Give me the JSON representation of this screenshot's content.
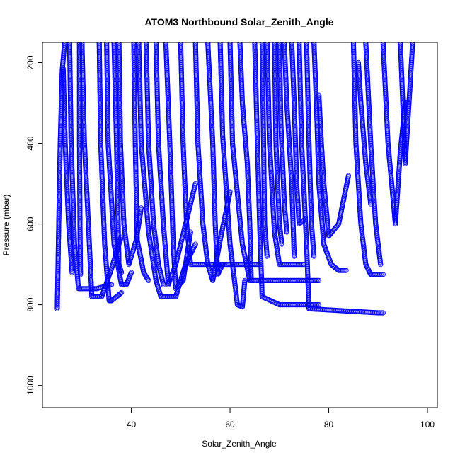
{
  "chart_data": {
    "type": "scatter",
    "title": "ATOM3 Northbound Solar_Zenith_Angle",
    "xlabel": "Solar_Zenith_Angle",
    "ylabel": "Pressure (mbar)",
    "xlim": [
      22,
      102
    ],
    "ylim": [
      1055,
      150
    ],
    "y_reversed": true,
    "x_ticks": [
      40,
      60,
      80,
      100
    ],
    "y_ticks": [
      200,
      400,
      600,
      800,
      1000
    ],
    "grid": false,
    "legend": "none",
    "series_color": "#0000ff",
    "series": [
      {
        "values": [
          [
            25.0,
            810
          ],
          [
            25.3,
            600
          ],
          [
            25.6,
            400
          ],
          [
            26.0,
            220
          ],
          [
            26.5,
            150
          ]
        ]
      },
      {
        "values": [
          [
            26.2,
            215
          ],
          [
            26.6,
            400
          ],
          [
            27.3,
            600
          ],
          [
            28.0,
            720
          ]
        ]
      },
      {
        "values": [
          [
            27.5,
            150
          ],
          [
            27.8,
            400
          ],
          [
            28.5,
            650
          ],
          [
            29.3,
            760
          ],
          [
            33.0,
            760
          ],
          [
            36.0,
            750
          ]
        ]
      },
      {
        "values": [
          [
            29.5,
            150
          ],
          [
            29.5,
            400
          ],
          [
            29.6,
            600
          ],
          [
            29.7,
            725
          ]
        ]
      },
      {
        "values": [
          [
            30.0,
            150
          ],
          [
            30.5,
            400
          ],
          [
            31.5,
            650
          ],
          [
            32.0,
            780
          ],
          [
            34.0,
            780
          ],
          [
            36.0,
            710
          ],
          [
            38.0,
            630
          ]
        ]
      },
      {
        "values": [
          [
            33.5,
            150
          ],
          [
            33.8,
            400
          ],
          [
            34.6,
            650
          ],
          [
            35.5,
            790
          ],
          [
            36.0,
            790
          ],
          [
            38.0,
            770
          ]
        ]
      },
      {
        "values": [
          [
            35.0,
            150
          ],
          [
            35.3,
            400
          ],
          [
            36.5,
            650
          ],
          [
            38.0,
            750
          ],
          [
            39.0,
            750
          ],
          [
            40.0,
            720
          ]
        ]
      },
      {
        "values": [
          [
            36.5,
            150
          ],
          [
            37.0,
            400
          ],
          [
            37.5,
            700
          ],
          [
            38.0,
            720
          ]
        ]
      },
      {
        "values": [
          [
            37.5,
            150
          ],
          [
            37.8,
            400
          ],
          [
            38.5,
            600
          ],
          [
            39.5,
            700
          ],
          [
            41.0,
            640
          ],
          [
            42.0,
            560
          ]
        ]
      },
      {
        "values": [
          [
            40.5,
            150
          ],
          [
            40.8,
            400
          ],
          [
            41.2,
            640
          ],
          [
            42.5,
            720
          ],
          [
            43.5,
            740
          ]
        ]
      },
      {
        "values": [
          [
            41.5,
            150
          ],
          [
            42.0,
            400
          ],
          [
            43.5,
            620
          ],
          [
            45.0,
            740
          ],
          [
            46.0,
            780
          ],
          [
            49.0,
            780
          ],
          [
            51.0,
            700
          ],
          [
            53.0,
            650
          ]
        ]
      },
      {
        "values": [
          [
            43.0,
            150
          ],
          [
            43.5,
            400
          ],
          [
            44.5,
            600
          ],
          [
            45.5,
            700
          ],
          [
            46.5,
            750
          ]
        ]
      },
      {
        "values": [
          [
            45.0,
            150
          ],
          [
            45.5,
            400
          ],
          [
            46.5,
            600
          ],
          [
            47.5,
            750
          ],
          [
            49.0,
            700
          ],
          [
            51.0,
            600
          ],
          [
            53.0,
            500
          ]
        ]
      },
      {
        "values": [
          [
            47.0,
            150
          ],
          [
            47.8,
            400
          ],
          [
            48.5,
            650
          ],
          [
            49.0,
            760
          ],
          [
            50.5,
            740
          ],
          [
            52.0,
            620
          ]
        ]
      },
      {
        "values": [
          [
            50.0,
            150
          ],
          [
            50.5,
            400
          ],
          [
            51.2,
            600
          ],
          [
            52.0,
            700
          ],
          [
            60.0,
            700
          ],
          [
            66.0,
            700
          ]
        ]
      },
      {
        "values": [
          [
            53.0,
            150
          ],
          [
            53.5,
            400
          ],
          [
            54.5,
            600
          ],
          [
            55.5,
            700
          ],
          [
            56.5,
            740
          ],
          [
            58.0,
            640
          ],
          [
            60.0,
            520
          ]
        ]
      },
      {
        "values": [
          [
            55.5,
            150
          ],
          [
            56.5,
            400
          ],
          [
            57.0,
            600
          ],
          [
            57.5,
            725
          ],
          [
            58.5,
            700
          ]
        ]
      },
      {
        "values": [
          [
            58.0,
            150
          ],
          [
            58.5,
            380
          ],
          [
            60.0,
            650
          ],
          [
            61.5,
            800
          ],
          [
            62.5,
            805
          ],
          [
            63.0,
            740
          ]
        ]
      },
      {
        "values": [
          [
            60.0,
            150
          ],
          [
            60.5,
            400
          ],
          [
            62.5,
            650
          ],
          [
            64.0,
            740
          ],
          [
            70.0,
            740
          ],
          [
            78.0,
            740
          ]
        ]
      },
      {
        "values": [
          [
            62.0,
            150
          ],
          [
            62.5,
            300
          ],
          [
            63.5,
            450
          ],
          [
            64.0,
            600
          ],
          [
            64.3,
            740
          ]
        ]
      },
      {
        "values": [
          [
            65.0,
            150
          ],
          [
            65.5,
            380
          ],
          [
            66.0,
            600
          ],
          [
            66.5,
            780
          ],
          [
            70.0,
            800
          ],
          [
            78.0,
            800
          ]
        ]
      },
      {
        "values": [
          [
            66.5,
            150
          ],
          [
            66.8,
            400
          ],
          [
            67.0,
            600
          ],
          [
            67.5,
            680
          ]
        ]
      },
      {
        "values": [
          [
            67.5,
            150
          ],
          [
            68.0,
            400
          ],
          [
            69.0,
            620
          ],
          [
            70.0,
            700
          ],
          [
            75.0,
            700
          ]
        ]
      },
      {
        "values": [
          [
            69.0,
            150
          ],
          [
            69.3,
            400
          ],
          [
            70.0,
            600
          ],
          [
            70.5,
            650
          ]
        ]
      },
      {
        "values": [
          [
            70.0,
            150
          ],
          [
            70.3,
            350
          ],
          [
            71.0,
            550
          ],
          [
            71.5,
            620
          ]
        ]
      },
      {
        "values": [
          [
            71.0,
            150
          ],
          [
            71.5,
            300
          ],
          [
            72.5,
            500
          ],
          [
            73.0,
            680
          ]
        ]
      },
      {
        "values": [
          [
            72.5,
            150
          ],
          [
            73.0,
            300
          ],
          [
            73.5,
            500
          ],
          [
            74.0,
            600
          ],
          [
            75.0,
            590
          ]
        ]
      },
      {
        "values": [
          [
            74.0,
            150
          ],
          [
            74.5,
            400
          ],
          [
            75.5,
            650
          ],
          [
            76.0,
            810
          ],
          [
            90.0,
            820
          ],
          [
            91.0,
            820
          ]
        ]
      },
      {
        "values": [
          [
            75.5,
            150
          ],
          [
            76.0,
            400
          ],
          [
            76.5,
            600
          ],
          [
            77.0,
            680
          ]
        ]
      },
      {
        "values": [
          [
            77.0,
            150
          ],
          [
            77.5,
            300
          ],
          [
            78.0,
            500
          ],
          [
            79.0,
            650
          ],
          [
            80.5,
            700
          ],
          [
            82.0,
            715
          ],
          [
            83.5,
            715
          ]
        ]
      },
      {
        "values": [
          [
            78.0,
            280
          ],
          [
            78.5,
            400
          ],
          [
            79.0,
            500
          ],
          [
            80.0,
            630
          ],
          [
            82.0,
            600
          ],
          [
            84.0,
            480
          ]
        ]
      },
      {
        "values": [
          [
            85.0,
            150
          ],
          [
            85.5,
            400
          ],
          [
            86.5,
            600
          ],
          [
            87.5,
            700
          ],
          [
            88.5,
            725
          ],
          [
            91.0,
            725
          ]
        ]
      },
      {
        "values": [
          [
            86.0,
            200
          ],
          [
            86.5,
            300
          ],
          [
            87.5,
            450
          ],
          [
            88.5,
            550
          ]
        ]
      },
      {
        "values": [
          [
            87.5,
            150
          ],
          [
            88.5,
            400
          ],
          [
            89.5,
            600
          ],
          [
            90.5,
            700
          ]
        ]
      },
      {
        "values": [
          [
            91.0,
            150
          ],
          [
            92.0,
            400
          ],
          [
            93.5,
            600
          ],
          [
            94.5,
            420
          ],
          [
            95.5,
            300
          ],
          [
            96.0,
            300
          ]
        ]
      },
      {
        "values": [
          [
            94.5,
            150
          ],
          [
            95.0,
            300
          ],
          [
            95.5,
            450
          ],
          [
            96.5,
            250
          ],
          [
            97.0,
            150
          ]
        ]
      }
    ]
  }
}
